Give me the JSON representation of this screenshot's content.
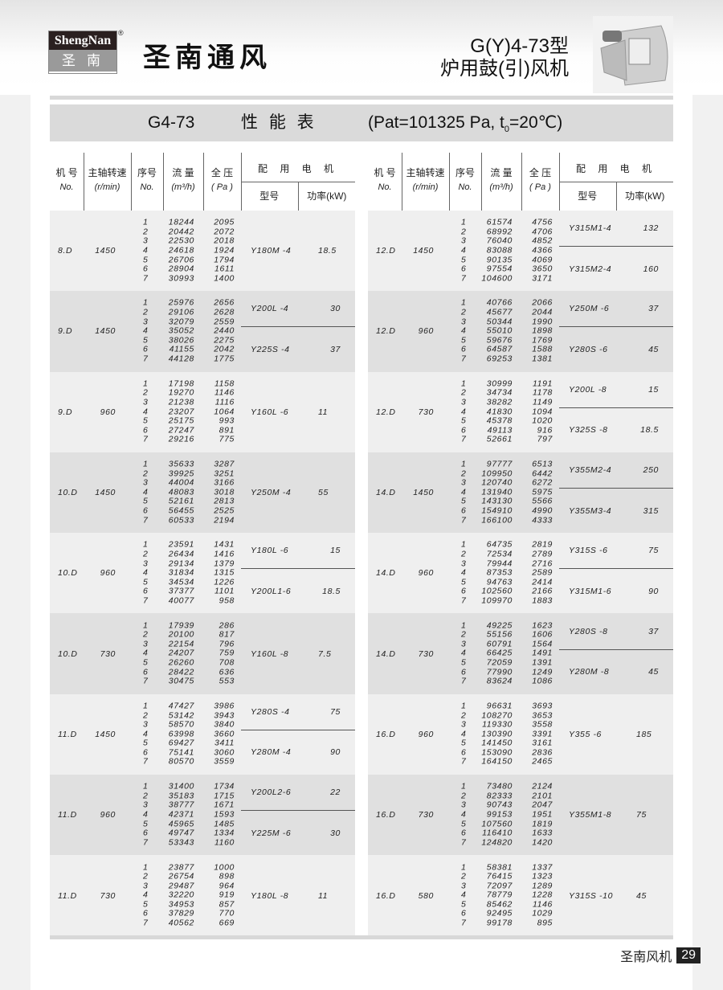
{
  "header": {
    "logo_en": "ShengNan",
    "logo_zh": "圣南",
    "registered": "®",
    "brand": "圣南通风",
    "product_line1": "G(Y)4-73型",
    "product_line2": "炉用鼓(引)风机"
  },
  "title_bar": {
    "model": "G4-73",
    "title": "性 能 表",
    "conditions": "(Pat=101325 Pa, t",
    "subscript": "0",
    "conditions_end": "=20℃)"
  },
  "columns": {
    "no_zh": "机 号",
    "no_en": "No.",
    "speed_zh": "主轴转速",
    "speed_en": "(r/min)",
    "seq_zh": "序号",
    "seq_en": "No.",
    "flow_zh": "流 量",
    "flow_en": "(m³/h)",
    "pressure_zh": "全 压",
    "pressure_en": "( Pa )",
    "motor_zh": "配 用 电 机",
    "model_zh": "型号",
    "power_zh": "功率(kW)"
  },
  "left_table": [
    {
      "no": "8.D",
      "speed": "1450",
      "rows": [
        [
          "1",
          "18244",
          "2095"
        ],
        [
          "2",
          "20442",
          "2072"
        ],
        [
          "3",
          "22530",
          "2018"
        ],
        [
          "4",
          "24618",
          "1924"
        ],
        [
          "5",
          "26706",
          "1794"
        ],
        [
          "6",
          "28904",
          "1611"
        ],
        [
          "7",
          "30993",
          "1400"
        ]
      ],
      "motors": [
        {
          "model": "Y180M -4",
          "power": "18.5"
        }
      ]
    },
    {
      "no": "9.D",
      "speed": "1450",
      "rows": [
        [
          "1",
          "25976",
          "2656"
        ],
        [
          "2",
          "29106",
          "2628"
        ],
        [
          "3",
          "32079",
          "2559"
        ],
        [
          "4",
          "35052",
          "2440"
        ],
        [
          "5",
          "38026",
          "2275"
        ],
        [
          "6",
          "41155",
          "2042"
        ],
        [
          "7",
          "44128",
          "1775"
        ]
      ],
      "motors": [
        {
          "model": "Y200L -4",
          "power": "30"
        },
        {
          "model": "Y225S -4",
          "power": "37"
        }
      ]
    },
    {
      "no": "9.D",
      "speed": "960",
      "rows": [
        [
          "1",
          "17198",
          "1158"
        ],
        [
          "2",
          "19270",
          "1146"
        ],
        [
          "3",
          "21238",
          "1116"
        ],
        [
          "4",
          "23207",
          "1064"
        ],
        [
          "5",
          "25175",
          "993"
        ],
        [
          "6",
          "27247",
          "891"
        ],
        [
          "7",
          "29216",
          "775"
        ]
      ],
      "motors": [
        {
          "model": "Y160L -6",
          "power": "11"
        }
      ]
    },
    {
      "no": "10.D",
      "speed": "1450",
      "rows": [
        [
          "1",
          "35633",
          "3287"
        ],
        [
          "2",
          "39925",
          "3251"
        ],
        [
          "3",
          "44004",
          "3166"
        ],
        [
          "4",
          "48083",
          "3018"
        ],
        [
          "5",
          "52161",
          "2813"
        ],
        [
          "6",
          "56455",
          "2525"
        ],
        [
          "7",
          "60533",
          "2194"
        ]
      ],
      "motors": [
        {
          "model": "Y250M -4",
          "power": "55"
        }
      ]
    },
    {
      "no": "10.D",
      "speed": "960",
      "rows": [
        [
          "1",
          "23591",
          "1431"
        ],
        [
          "2",
          "26434",
          "1416"
        ],
        [
          "3",
          "29134",
          "1379"
        ],
        [
          "4",
          "31834",
          "1315"
        ],
        [
          "5",
          "34534",
          "1226"
        ],
        [
          "6",
          "37377",
          "1101"
        ],
        [
          "7",
          "40077",
          "958"
        ]
      ],
      "motors": [
        {
          "model": "Y180L -6",
          "power": "15"
        },
        {
          "model": "Y200L1-6",
          "power": "18.5"
        }
      ]
    },
    {
      "no": "10.D",
      "speed": "730",
      "rows": [
        [
          "1",
          "17939",
          "286"
        ],
        [
          "2",
          "20100",
          "817"
        ],
        [
          "3",
          "22154",
          "796"
        ],
        [
          "4",
          "24207",
          "759"
        ],
        [
          "5",
          "26260",
          "708"
        ],
        [
          "6",
          "28422",
          "636"
        ],
        [
          "7",
          "30475",
          "553"
        ]
      ],
      "motors": [
        {
          "model": "Y160L -8",
          "power": "7.5"
        }
      ]
    },
    {
      "no": "11.D",
      "speed": "1450",
      "rows": [
        [
          "1",
          "47427",
          "3986"
        ],
        [
          "2",
          "53142",
          "3943"
        ],
        [
          "3",
          "58570",
          "3840"
        ],
        [
          "4",
          "63998",
          "3660"
        ],
        [
          "5",
          "69427",
          "3411"
        ],
        [
          "6",
          "75141",
          "3060"
        ],
        [
          "7",
          "80570",
          "3559"
        ]
      ],
      "motors": [
        {
          "model": "Y280S -4",
          "power": "75"
        },
        {
          "model": "Y280M -4",
          "power": "90"
        }
      ]
    },
    {
      "no": "11.D",
      "speed": "960",
      "rows": [
        [
          "1",
          "31400",
          "1734"
        ],
        [
          "2",
          "35183",
          "1715"
        ],
        [
          "3",
          "38777",
          "1671"
        ],
        [
          "4",
          "42371",
          "1593"
        ],
        [
          "5",
          "45965",
          "1485"
        ],
        [
          "6",
          "49747",
          "1334"
        ],
        [
          "7",
          "53343",
          "1160"
        ]
      ],
      "motors": [
        {
          "model": "Y200L2-6",
          "power": "22"
        },
        {
          "model": "Y225M -6",
          "power": "30"
        }
      ]
    },
    {
      "no": "11.D",
      "speed": "730",
      "rows": [
        [
          "1",
          "23877",
          "1000"
        ],
        [
          "2",
          "26754",
          "898"
        ],
        [
          "3",
          "29487",
          "964"
        ],
        [
          "4",
          "32220",
          "919"
        ],
        [
          "5",
          "34953",
          "857"
        ],
        [
          "6",
          "37829",
          "770"
        ],
        [
          "7",
          "40562",
          "669"
        ]
      ],
      "motors": [
        {
          "model": "Y180L -8",
          "power": "11"
        }
      ]
    }
  ],
  "right_table": [
    {
      "no": "12.D",
      "speed": "1450",
      "rows": [
        [
          "1",
          "61574",
          "4756"
        ],
        [
          "2",
          "68992",
          "4706"
        ],
        [
          "3",
          "76040",
          "4852"
        ],
        [
          "4",
          "83088",
          "4366"
        ],
        [
          "5",
          "90135",
          "4069"
        ],
        [
          "6",
          "97554",
          "3650"
        ],
        [
          "7",
          "104600",
          "3171"
        ]
      ],
      "motors": [
        {
          "model": "Y315M1-4",
          "power": "132"
        },
        {
          "model": "Y315M2-4",
          "power": "160"
        }
      ]
    },
    {
      "no": "12.D",
      "speed": "960",
      "rows": [
        [
          "1",
          "40766",
          "2066"
        ],
        [
          "2",
          "45677",
          "2044"
        ],
        [
          "3",
          "50344",
          "1990"
        ],
        [
          "4",
          "55010",
          "1898"
        ],
        [
          "5",
          "59676",
          "1769"
        ],
        [
          "6",
          "64587",
          "1588"
        ],
        [
          "7",
          "69253",
          "1381"
        ]
      ],
      "motors": [
        {
          "model": "Y250M -6",
          "power": "37"
        },
        {
          "model": "Y280S -6",
          "power": "45"
        }
      ]
    },
    {
      "no": "12.D",
      "speed": "730",
      "rows": [
        [
          "1",
          "30999",
          "1191"
        ],
        [
          "2",
          "34734",
          "1178"
        ],
        [
          "3",
          "38282",
          "1149"
        ],
        [
          "4",
          "41830",
          "1094"
        ],
        [
          "5",
          "45378",
          "1020"
        ],
        [
          "6",
          "49113",
          "916"
        ],
        [
          "7",
          "52661",
          "797"
        ]
      ],
      "motors": [
        {
          "model": "Y200L -8",
          "power": "15"
        },
        {
          "model": "Y325S -8",
          "power": "18.5"
        }
      ]
    },
    {
      "no": "14.D",
      "speed": "1450",
      "rows": [
        [
          "1",
          "97777",
          "6513"
        ],
        [
          "2",
          "109950",
          "6442"
        ],
        [
          "3",
          "120740",
          "6272"
        ],
        [
          "4",
          "131940",
          "5975"
        ],
        [
          "5",
          "143130",
          "5566"
        ],
        [
          "6",
          "154910",
          "4990"
        ],
        [
          "7",
          "166100",
          "4333"
        ]
      ],
      "motors": [
        {
          "model": "Y355M2-4",
          "power": "250"
        },
        {
          "model": "Y355M3-4",
          "power": "315"
        }
      ]
    },
    {
      "no": "14.D",
      "speed": "960",
      "rows": [
        [
          "1",
          "64735",
          "2819"
        ],
        [
          "2",
          "72534",
          "2789"
        ],
        [
          "3",
          "79944",
          "2716"
        ],
        [
          "4",
          "87353",
          "2589"
        ],
        [
          "5",
          "94763",
          "2414"
        ],
        [
          "6",
          "102560",
          "2166"
        ],
        [
          "7",
          "109970",
          "1883"
        ]
      ],
      "motors": [
        {
          "model": "Y315S -6",
          "power": "75"
        },
        {
          "model": "Y315M1-6",
          "power": "90"
        }
      ]
    },
    {
      "no": "14.D",
      "speed": "730",
      "rows": [
        [
          "1",
          "49225",
          "1623"
        ],
        [
          "2",
          "55156",
          "1606"
        ],
        [
          "3",
          "60791",
          "1564"
        ],
        [
          "4",
          "66425",
          "1491"
        ],
        [
          "5",
          "72059",
          "1391"
        ],
        [
          "6",
          "77990",
          "1249"
        ],
        [
          "7",
          "83624",
          "1086"
        ]
      ],
      "motors": [
        {
          "model": "Y280S -8",
          "power": "37"
        },
        {
          "model": "Y280M -8",
          "power": "45"
        }
      ]
    },
    {
      "no": "16.D",
      "speed": "960",
      "rows": [
        [
          "1",
          "96631",
          "3693"
        ],
        [
          "2",
          "108270",
          "3653"
        ],
        [
          "3",
          "119330",
          "3558"
        ],
        [
          "4",
          "130390",
          "3391"
        ],
        [
          "5",
          "141450",
          "3161"
        ],
        [
          "6",
          "153090",
          "2836"
        ],
        [
          "7",
          "164150",
          "2465"
        ]
      ],
      "motors": [
        {
          "model": "Y355 -6",
          "power": "185"
        }
      ]
    },
    {
      "no": "16.D",
      "speed": "730",
      "rows": [
        [
          "1",
          "73480",
          "2124"
        ],
        [
          "2",
          "82333",
          "2101"
        ],
        [
          "3",
          "90743",
          "2047"
        ],
        [
          "4",
          "99153",
          "1951"
        ],
        [
          "5",
          "107560",
          "1819"
        ],
        [
          "6",
          "116410",
          "1633"
        ],
        [
          "7",
          "124820",
          "1420"
        ]
      ],
      "motors": [
        {
          "model": "Y355M1-8",
          "power": "75"
        }
      ]
    },
    {
      "no": "16.D",
      "speed": "580",
      "rows": [
        [
          "1",
          "58381",
          "1337"
        ],
        [
          "2",
          "76415",
          "1323"
        ],
        [
          "3",
          "72097",
          "1289"
        ],
        [
          "4",
          "78779",
          "1228"
        ],
        [
          "5",
          "85462",
          "1146"
        ],
        [
          "6",
          "92495",
          "1029"
        ],
        [
          "7",
          "99178",
          "895"
        ]
      ],
      "motors": [
        {
          "model": "Y315S -10",
          "power": "45"
        }
      ]
    }
  ],
  "footer": {
    "brand": "圣南风机",
    "page": "29"
  }
}
